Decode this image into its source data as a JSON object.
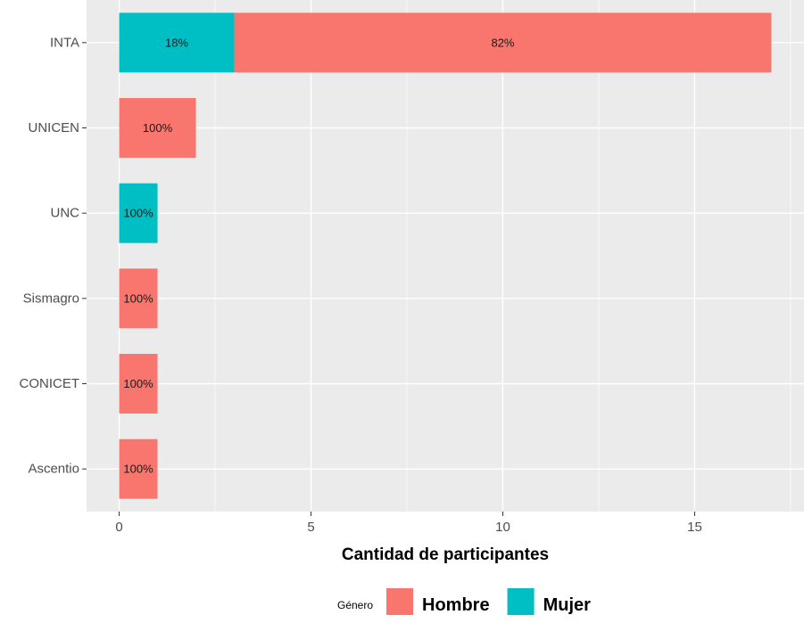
{
  "chart_data": {
    "type": "bar",
    "orientation": "horizontal",
    "stacked": true,
    "categories": [
      "INTA",
      "UNICEN",
      "UNC",
      "Sismagro",
      "CONICET",
      "Ascentio"
    ],
    "series": [
      {
        "name": "Mujer",
        "color": "#00bfc4",
        "values": [
          3,
          0,
          1,
          0,
          0,
          0
        ]
      },
      {
        "name": "Hombre",
        "color": "#f8766d",
        "values": [
          14,
          2,
          0,
          1,
          1,
          1
        ]
      }
    ],
    "data_labels": [
      {
        "category": "INTA",
        "series": "Mujer",
        "text": "18%"
      },
      {
        "category": "INTA",
        "series": "Hombre",
        "text": "82%"
      },
      {
        "category": "UNICEN",
        "series": "Hombre",
        "text": "100%"
      },
      {
        "category": "UNC",
        "series": "Mujer",
        "text": "100%"
      },
      {
        "category": "Sismagro",
        "series": "Hombre",
        "text": "100%"
      },
      {
        "category": "CONICET",
        "series": "Hombre",
        "text": "100%"
      },
      {
        "category": "Ascentio",
        "series": "Hombre",
        "text": "100%"
      }
    ],
    "xlabel": "Cantidad de participantes",
    "ylabel": "",
    "xlim": [
      -0.85,
      17.85
    ],
    "xticks": [
      0,
      5,
      10,
      15
    ],
    "grid": true,
    "panel_background": "#ebebeb",
    "legend": {
      "position": "bottom",
      "title": "Género",
      "entries": [
        {
          "label": "Hombre",
          "color": "#f8766d"
        },
        {
          "label": "Mujer",
          "color": "#00bfc4"
        }
      ]
    }
  }
}
